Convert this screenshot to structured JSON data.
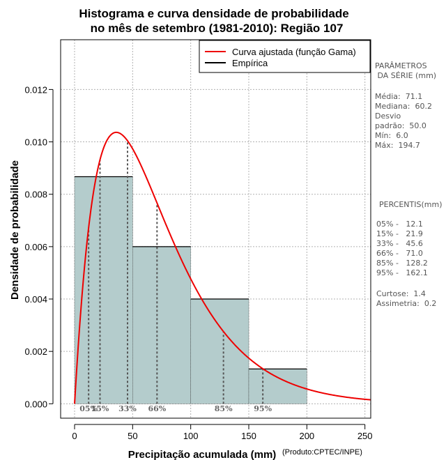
{
  "chart_data": {
    "type": "histogram",
    "title_line1": "Histograma e curva densidade de probabilidade",
    "title_line2": "no mês de setembro (1981-2010): Região 107",
    "xlabel": "Precipitação acumulada (mm)",
    "ylabel": "Densidade de probabilidade",
    "credit": "(Produto:CPTEC/INPE)",
    "xlim": [
      -12,
      255
    ],
    "ylim": [
      -0.00055,
      0.0139
    ],
    "x_ticks": [
      0,
      50,
      100,
      150,
      200,
      250
    ],
    "y_ticks": [
      0.0,
      0.002,
      0.004,
      0.006,
      0.008,
      0.01,
      0.012
    ],
    "y_tick_labels": [
      "0.000",
      "0.002",
      "0.004",
      "0.006",
      "0.008",
      "0.010",
      "0.012"
    ],
    "bins": [
      {
        "start": 0,
        "end": 50,
        "density": 0.00867
      },
      {
        "start": 50,
        "end": 100,
        "density": 0.006
      },
      {
        "start": 100,
        "end": 150,
        "density": 0.004
      },
      {
        "start": 150,
        "end": 200,
        "density": 0.00133
      }
    ],
    "gamma_fit": {
      "shape": 2.02,
      "scale": 35.2
    },
    "percentile_markers": [
      {
        "label": "05%",
        "value": 12.1
      },
      {
        "label": "15%",
        "value": 21.9
      },
      {
        "label": "33%",
        "value": 45.6
      },
      {
        "label": "66%",
        "value": 71.0
      },
      {
        "label": "85%",
        "value": 128.2
      },
      {
        "label": "95%",
        "value": 162.1
      }
    ],
    "legend": [
      {
        "label": "Curva ajustada (função Gama)",
        "color": "#ee0000"
      },
      {
        "label": "Empírica",
        "color": "#000000"
      }
    ],
    "colors": {
      "bars": "#b4cccc",
      "curve": "#ee0000",
      "grid": "#b0b0b0",
      "percentile": "#555555"
    }
  },
  "parameters": {
    "heading": "PARÂMETROS\n DA SÉRIE (mm)",
    "stats": "Média:  71.1\nMediana:  60.2\nDesvio\npadrão:  50.0\nMín:  6.0\nMáx:  194.7"
  },
  "percentiles_panel": {
    "heading": "PERCENTIS(mm)",
    "values": "05% -   12.1\n15% -   21.9\n33% -   45.6\n66% -   71.0\n85% -   128.2\n95% -   162.1",
    "shape": "Curtose:  1.4\nAssimetria:  0.2"
  }
}
